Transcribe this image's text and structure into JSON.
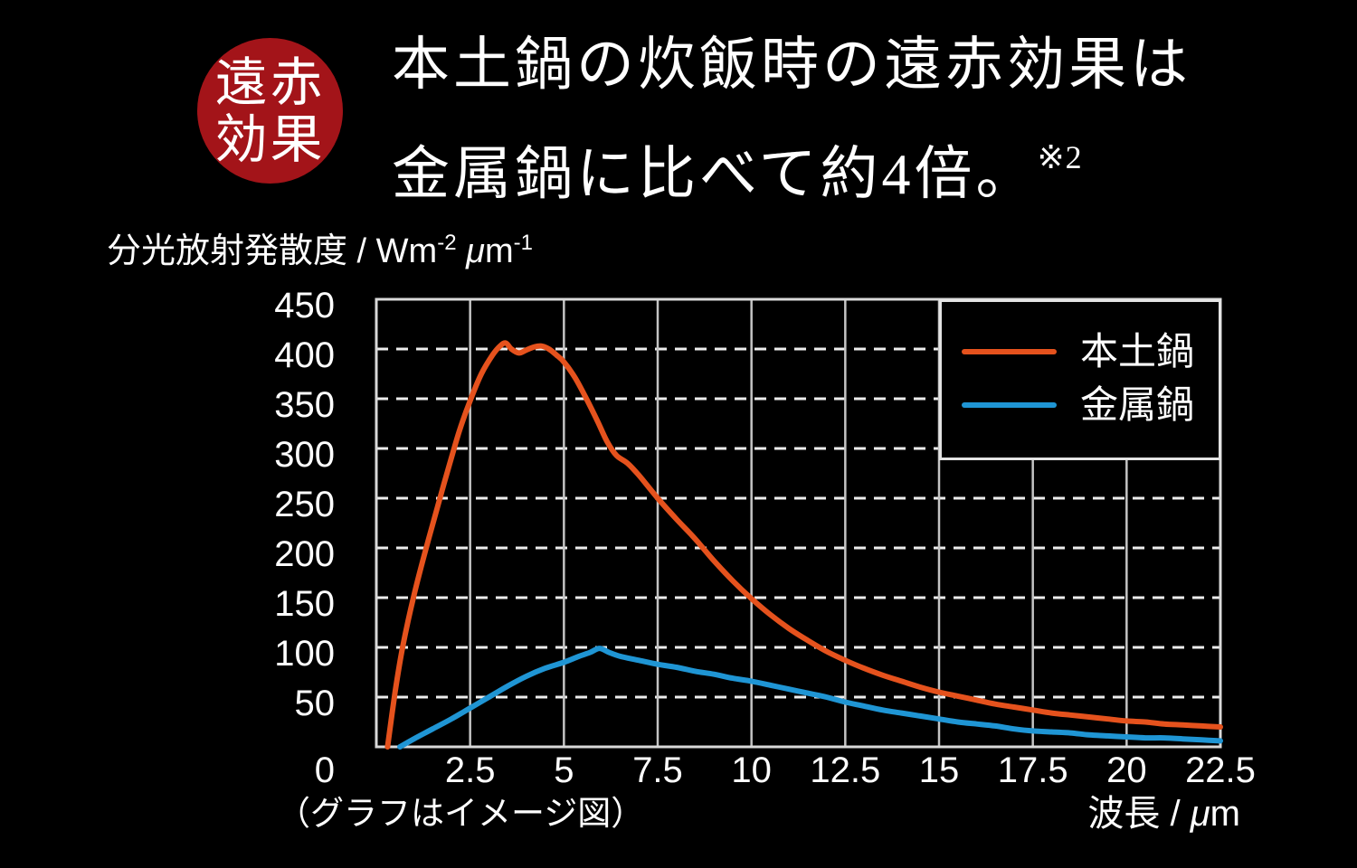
{
  "badge": {
    "line1": "遠赤",
    "line2": "効果"
  },
  "title": {
    "line1": "本土鍋の炊飯時の遠赤効果は",
    "line2_main": "金属鍋に比べて約4倍。",
    "line2_sup": "※2"
  },
  "y_axis_unit": {
    "prefix": "分光放射発散度 / Wm",
    "sup1": "-2",
    "mu": " μ",
    "base2": "m",
    "sup2": "-1"
  },
  "x_axis_unit": {
    "prefix": "波長 / ",
    "mu": "μ",
    "base": "m"
  },
  "footnote": {
    "text": "（グラフはイメージ図）"
  },
  "colors": {
    "background": "#000000",
    "badge_red": "#a31419",
    "text_white": "#ffffff",
    "clay_pot_line": "#e5521d",
    "metal_pot_line": "#1f95d4",
    "grid_dashed": "#ededed",
    "grid_solid": "#c4c4c4",
    "plot_border": "#d9d9d9"
  },
  "chart_data": {
    "type": "line",
    "title": "本土鍋の炊飯時の遠赤効果は金属鍋に比べて約4倍。※2",
    "xlabel": "波長 / μm",
    "ylabel": "分光放射発散度 / Wm-2 μm-1",
    "x_range": [
      0,
      22.5
    ],
    "y_range": [
      0,
      450
    ],
    "x_ticks": [
      2.5,
      5,
      7.5,
      10,
      12.5,
      15,
      17.5,
      20,
      22.5
    ],
    "y_ticks": [
      0,
      50,
      100,
      150,
      200,
      250,
      300,
      350,
      400,
      450
    ],
    "grid": {
      "horizontal": "dashed",
      "vertical": "solid"
    },
    "legend_position": "top-right",
    "series": [
      {
        "name": "本土鍋",
        "color": "#e5521d",
        "points": [
          [
            0.3,
            0
          ],
          [
            0.5,
            55
          ],
          [
            0.7,
            100
          ],
          [
            1.0,
            152
          ],
          [
            1.4,
            210
          ],
          [
            1.8,
            264
          ],
          [
            2.2,
            316
          ],
          [
            2.5,
            348
          ],
          [
            2.8,
            375
          ],
          [
            3.1,
            394
          ],
          [
            3.3,
            403
          ],
          [
            3.45,
            406
          ],
          [
            3.6,
            400
          ],
          [
            3.8,
            396
          ],
          [
            4.0,
            399
          ],
          [
            4.2,
            402
          ],
          [
            4.4,
            403
          ],
          [
            4.6,
            400
          ],
          [
            4.8,
            394
          ],
          [
            5.0,
            387
          ],
          [
            5.3,
            371
          ],
          [
            5.6,
            350
          ],
          [
            5.9,
            327
          ],
          [
            6.15,
            307
          ],
          [
            6.4,
            293
          ],
          [
            6.7,
            285
          ],
          [
            7.0,
            273
          ],
          [
            7.5,
            250
          ],
          [
            8.0,
            229
          ],
          [
            8.5,
            209
          ],
          [
            9.0,
            187
          ],
          [
            9.5,
            167
          ],
          [
            10.0,
            149
          ],
          [
            10.5,
            133
          ],
          [
            11.0,
            119
          ],
          [
            11.5,
            107
          ],
          [
            12.0,
            96
          ],
          [
            12.5,
            87
          ],
          [
            13.0,
            79
          ],
          [
            13.5,
            72
          ],
          [
            14.0,
            66
          ],
          [
            14.5,
            60
          ],
          [
            15.0,
            55
          ],
          [
            15.5,
            51
          ],
          [
            16.0,
            47
          ],
          [
            16.5,
            43
          ],
          [
            17.0,
            40
          ],
          [
            17.5,
            37
          ],
          [
            18.0,
            34
          ],
          [
            18.5,
            32
          ],
          [
            19.0,
            30
          ],
          [
            19.5,
            28
          ],
          [
            20.0,
            26
          ],
          [
            20.5,
            25
          ],
          [
            21.0,
            23
          ],
          [
            21.5,
            22
          ],
          [
            22.0,
            21
          ],
          [
            22.5,
            20
          ]
        ]
      },
      {
        "name": "金属鍋",
        "color": "#1f95d4",
        "points": [
          [
            0.63,
            0
          ],
          [
            1.0,
            8
          ],
          [
            1.5,
            18
          ],
          [
            2.0,
            28
          ],
          [
            2.5,
            39
          ],
          [
            3.0,
            50
          ],
          [
            3.5,
            61
          ],
          [
            4.0,
            71
          ],
          [
            4.5,
            79
          ],
          [
            5.0,
            85
          ],
          [
            5.4,
            91
          ],
          [
            5.7,
            95
          ],
          [
            5.95,
            99
          ],
          [
            6.2,
            95
          ],
          [
            6.5,
            91
          ],
          [
            7.0,
            87
          ],
          [
            7.5,
            83
          ],
          [
            8.0,
            80
          ],
          [
            8.5,
            76
          ],
          [
            9.0,
            73
          ],
          [
            9.5,
            69
          ],
          [
            10.0,
            66
          ],
          [
            10.5,
            62
          ],
          [
            11.0,
            58
          ],
          [
            11.5,
            54
          ],
          [
            12.0,
            50
          ],
          [
            12.5,
            45
          ],
          [
            13.0,
            41
          ],
          [
            13.5,
            37
          ],
          [
            14.0,
            34
          ],
          [
            14.5,
            31
          ],
          [
            15.0,
            28
          ],
          [
            15.5,
            25
          ],
          [
            16.0,
            23
          ],
          [
            16.5,
            21
          ],
          [
            17.0,
            18
          ],
          [
            17.5,
            16
          ],
          [
            18.0,
            15
          ],
          [
            18.5,
            14
          ],
          [
            19.0,
            12
          ],
          [
            19.5,
            11
          ],
          [
            20.0,
            10
          ],
          [
            20.5,
            9
          ],
          [
            21.0,
            9
          ],
          [
            21.5,
            8
          ],
          [
            22.0,
            7
          ],
          [
            22.5,
            6
          ]
        ]
      }
    ]
  }
}
